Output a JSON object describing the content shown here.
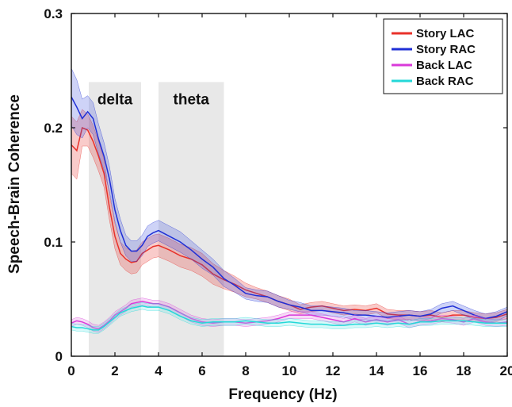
{
  "chart_data": {
    "type": "line",
    "title": "",
    "xlabel": "Frequency (Hz)",
    "ylabel": "Speech-Brain Coherence",
    "xlim": [
      0,
      20
    ],
    "ylim": [
      0,
      0.3
    ],
    "x_ticks": [
      0,
      2,
      4,
      6,
      8,
      10,
      12,
      14,
      16,
      18,
      20
    ],
    "y_ticks": [
      0,
      0.1,
      0.2,
      0.3
    ],
    "x_tick_labels": [
      "0",
      "2",
      "4",
      "6",
      "8",
      "10",
      "12",
      "14",
      "16",
      "18",
      "20"
    ],
    "y_tick_labels": [
      "0",
      "0.1",
      "0.2",
      "0.3"
    ],
    "grid": false,
    "legend_position": "top-right",
    "bands": [
      {
        "label": "delta",
        "x_start": 0.8,
        "x_end": 3.2,
        "color": "#e8e8e8"
      },
      {
        "label": "theta",
        "x_start": 4.0,
        "x_end": 7.0,
        "color": "#e8e8e8"
      }
    ],
    "series": [
      {
        "name": "Story LAC",
        "color": "#e8312a",
        "fill": "#e8312a",
        "x": [
          0,
          0.25,
          0.5,
          0.75,
          1,
          1.25,
          1.5,
          1.75,
          2,
          2.25,
          2.5,
          2.75,
          3,
          3.25,
          3.5,
          3.75,
          4,
          4.5,
          5,
          5.5,
          6,
          6.5,
          7,
          7.5,
          8,
          8.5,
          9,
          9.5,
          10,
          10.5,
          11,
          11.5,
          12,
          12.5,
          13,
          13.5,
          14,
          14.5,
          15,
          15.5,
          16,
          16.5,
          17,
          17.5,
          18,
          18.5,
          19,
          19.5,
          20
        ],
        "values": [
          0.185,
          0.18,
          0.2,
          0.198,
          0.188,
          0.175,
          0.16,
          0.13,
          0.105,
          0.09,
          0.085,
          0.082,
          0.083,
          0.09,
          0.093,
          0.096,
          0.097,
          0.093,
          0.088,
          0.085,
          0.08,
          0.072,
          0.067,
          0.063,
          0.058,
          0.055,
          0.052,
          0.048,
          0.045,
          0.041,
          0.043,
          0.044,
          0.042,
          0.04,
          0.041,
          0.04,
          0.042,
          0.037,
          0.036,
          0.036,
          0.035,
          0.036,
          0.034,
          0.036,
          0.036,
          0.034,
          0.033,
          0.034,
          0.037
        ],
        "errors": [
          0.025,
          0.025,
          0.016,
          0.014,
          0.014,
          0.013,
          0.012,
          0.011,
          0.011,
          0.01,
          0.01,
          0.01,
          0.01,
          0.01,
          0.01,
          0.01,
          0.01,
          0.01,
          0.01,
          0.01,
          0.01,
          0.009,
          0.008,
          0.007,
          0.006,
          0.005,
          0.005,
          0.005,
          0.005,
          0.004,
          0.004,
          0.004,
          0.004,
          0.004,
          0.004,
          0.004,
          0.004,
          0.004,
          0.004,
          0.004,
          0.004,
          0.004,
          0.004,
          0.004,
          0.004,
          0.004,
          0.004,
          0.004,
          0.004
        ]
      },
      {
        "name": "Story RAC",
        "color": "#1f2fd6",
        "fill": "#3b4fe0",
        "x": [
          0,
          0.25,
          0.5,
          0.75,
          1,
          1.25,
          1.5,
          1.75,
          2,
          2.25,
          2.5,
          2.75,
          3,
          3.25,
          3.5,
          3.75,
          4,
          4.5,
          5,
          5.5,
          6,
          6.5,
          7,
          7.5,
          8,
          8.5,
          9,
          9.5,
          10,
          10.5,
          11,
          11.5,
          12,
          12.5,
          13,
          13.5,
          14,
          14.5,
          15,
          15.5,
          16,
          16.5,
          17,
          17.5,
          18,
          18.5,
          19,
          19.5,
          20
        ],
        "values": [
          0.227,
          0.218,
          0.208,
          0.214,
          0.208,
          0.19,
          0.175,
          0.155,
          0.128,
          0.11,
          0.097,
          0.092,
          0.092,
          0.097,
          0.105,
          0.108,
          0.11,
          0.105,
          0.1,
          0.093,
          0.085,
          0.078,
          0.068,
          0.062,
          0.055,
          0.053,
          0.052,
          0.048,
          0.045,
          0.043,
          0.04,
          0.04,
          0.039,
          0.038,
          0.036,
          0.036,
          0.035,
          0.034,
          0.035,
          0.036,
          0.035,
          0.037,
          0.042,
          0.044,
          0.04,
          0.036,
          0.033,
          0.035,
          0.039
        ],
        "errors": [
          0.025,
          0.024,
          0.017,
          0.014,
          0.014,
          0.013,
          0.012,
          0.011,
          0.01,
          0.01,
          0.009,
          0.009,
          0.009,
          0.009,
          0.009,
          0.009,
          0.009,
          0.009,
          0.009,
          0.008,
          0.008,
          0.007,
          0.007,
          0.006,
          0.005,
          0.005,
          0.005,
          0.005,
          0.004,
          0.004,
          0.004,
          0.004,
          0.004,
          0.004,
          0.004,
          0.004,
          0.004,
          0.004,
          0.004,
          0.004,
          0.004,
          0.004,
          0.004,
          0.004,
          0.004,
          0.004,
          0.004,
          0.004,
          0.004
        ]
      },
      {
        "name": "Back LAC",
        "color": "#d93ad9",
        "fill": "#e27be2",
        "x": [
          0,
          0.25,
          0.5,
          0.75,
          1,
          1.25,
          1.5,
          1.75,
          2,
          2.25,
          2.5,
          2.75,
          3,
          3.25,
          3.5,
          3.75,
          4,
          4.5,
          5,
          5.5,
          6,
          6.5,
          7,
          7.5,
          8,
          8.5,
          9,
          9.5,
          10,
          10.5,
          11,
          11.5,
          12,
          12.5,
          13,
          13.5,
          14,
          14.5,
          15,
          15.5,
          16,
          16.5,
          17,
          17.5,
          18,
          18.5,
          19,
          19.5,
          20
        ],
        "values": [
          0.029,
          0.031,
          0.03,
          0.028,
          0.025,
          0.024,
          0.027,
          0.031,
          0.036,
          0.039,
          0.042,
          0.046,
          0.047,
          0.048,
          0.047,
          0.046,
          0.046,
          0.043,
          0.038,
          0.033,
          0.03,
          0.029,
          0.03,
          0.03,
          0.029,
          0.03,
          0.031,
          0.033,
          0.036,
          0.036,
          0.036,
          0.034,
          0.032,
          0.03,
          0.033,
          0.03,
          0.032,
          0.03,
          0.032,
          0.028,
          0.03,
          0.031,
          0.033,
          0.032,
          0.03,
          0.033,
          0.03,
          0.029,
          0.03
        ],
        "errors": [
          0.003,
          0.003,
          0.003,
          0.003,
          0.003,
          0.003,
          0.003,
          0.003,
          0.003,
          0.003,
          0.003,
          0.003,
          0.003,
          0.003,
          0.003,
          0.003,
          0.003,
          0.003,
          0.003,
          0.003,
          0.003,
          0.003,
          0.003,
          0.003,
          0.003,
          0.003,
          0.003,
          0.003,
          0.003,
          0.003,
          0.003,
          0.003,
          0.003,
          0.003,
          0.003,
          0.003,
          0.003,
          0.003,
          0.003,
          0.003,
          0.003,
          0.003,
          0.003,
          0.003,
          0.003,
          0.003,
          0.003,
          0.003,
          0.003
        ]
      },
      {
        "name": "Back RAC",
        "color": "#24d8d8",
        "fill": "#71e8e8",
        "x": [
          0,
          0.25,
          0.5,
          0.75,
          1,
          1.25,
          1.5,
          1.75,
          2,
          2.25,
          2.5,
          2.75,
          3,
          3.25,
          3.5,
          3.75,
          4,
          4.5,
          5,
          5.5,
          6,
          6.5,
          7,
          7.5,
          8,
          8.5,
          9,
          9.5,
          10,
          10.5,
          11,
          11.5,
          12,
          12.5,
          13,
          13.5,
          14,
          14.5,
          15,
          15.5,
          16,
          16.5,
          17,
          17.5,
          18,
          18.5,
          19,
          19.5,
          20
        ],
        "values": [
          0.026,
          0.025,
          0.025,
          0.024,
          0.023,
          0.023,
          0.026,
          0.03,
          0.034,
          0.038,
          0.04,
          0.042,
          0.043,
          0.044,
          0.043,
          0.043,
          0.043,
          0.04,
          0.035,
          0.031,
          0.029,
          0.03,
          0.03,
          0.03,
          0.031,
          0.03,
          0.029,
          0.029,
          0.03,
          0.029,
          0.028,
          0.028,
          0.027,
          0.027,
          0.028,
          0.028,
          0.029,
          0.028,
          0.029,
          0.028,
          0.03,
          0.03,
          0.031,
          0.031,
          0.031,
          0.03,
          0.029,
          0.029,
          0.029
        ],
        "errors": [
          0.003,
          0.003,
          0.003,
          0.003,
          0.003,
          0.003,
          0.003,
          0.003,
          0.003,
          0.003,
          0.003,
          0.003,
          0.003,
          0.003,
          0.003,
          0.003,
          0.003,
          0.003,
          0.003,
          0.003,
          0.003,
          0.003,
          0.003,
          0.003,
          0.003,
          0.003,
          0.003,
          0.003,
          0.003,
          0.003,
          0.003,
          0.003,
          0.003,
          0.003,
          0.003,
          0.003,
          0.003,
          0.003,
          0.003,
          0.003,
          0.003,
          0.003,
          0.003,
          0.003,
          0.003,
          0.003,
          0.003,
          0.003,
          0.003
        ]
      }
    ]
  }
}
